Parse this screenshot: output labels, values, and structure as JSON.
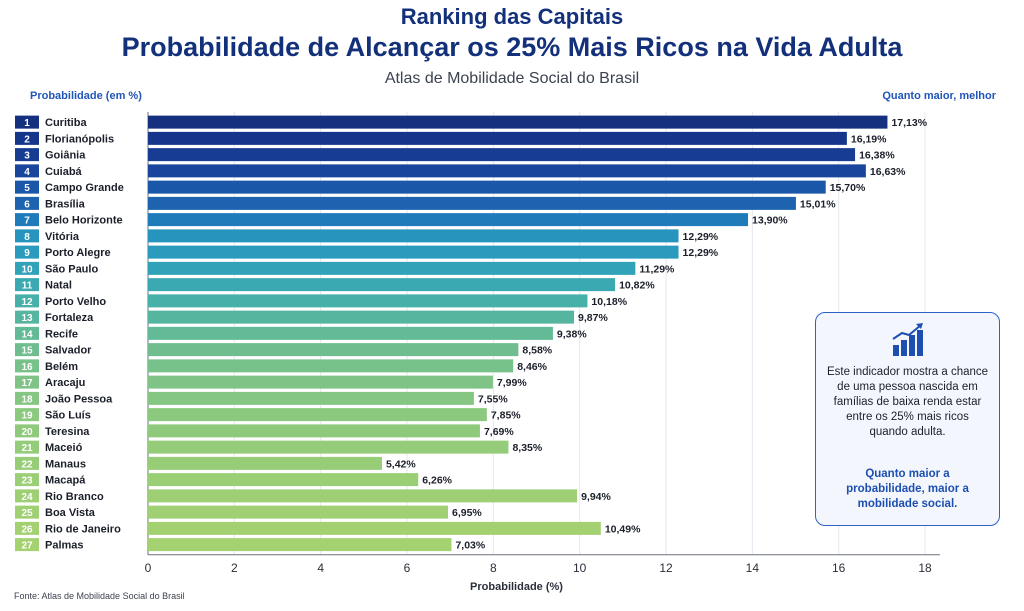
{
  "header": {
    "line1": "Ranking das Capitais",
    "line2": "Probabilidade de Alcançar os 25% Mais Ricos na Vida Adulta",
    "subtitle": "Atlas de Mobilidade Social do Brasil",
    "left_label": "Probabilidade (em %)",
    "right_label": "Quanto maior, melhor"
  },
  "info_box": {
    "icon": "bar-chart-growth-icon",
    "text": "Este indicador mostra a chance de uma pessoa nascida em famílias de baixa renda estar entre os 25% mais ricos quando adulta.",
    "highlight": "Quanto maior a probabilidade, maior a mobilidade social."
  },
  "footer": {
    "source": "Fonte: Atlas de Mobilidade Social do Brasil"
  },
  "chart_data": {
    "type": "bar",
    "orientation": "horizontal",
    "title": "Probabilidade de Alcançar os 25% Mais Ricos na Vida Adulta",
    "xlabel": "Probabilidade (%)",
    "ylabel": "Probabilidade (em %)",
    "xlim": [
      0,
      18
    ],
    "xticks": [
      0,
      2,
      4,
      6,
      8,
      10,
      12,
      14,
      16,
      18
    ],
    "grid": true,
    "ranks": [
      "1",
      "2",
      "3",
      "4",
      "5",
      "6",
      "7",
      "8",
      "9",
      "10",
      "11",
      "12",
      "13",
      "14",
      "15",
      "16",
      "17",
      "18",
      "19",
      "20",
      "21",
      "22",
      "23",
      "24",
      "25",
      "26",
      "27"
    ],
    "categories": [
      "Curitiba",
      "Florianópolis",
      "Goiânia",
      "Cuiabá",
      "Campo Grande",
      "Brasília",
      "Belo Horizonte",
      "Vitória",
      "Porto Alegre",
      "São Paulo",
      "Natal",
      "Porto Velho",
      "Fortaleza",
      "Recife",
      "Salvador",
      "Belém",
      "Aracaju",
      "João Pessoa",
      "São Luís",
      "Teresina",
      "Maceió",
      "Manaus",
      "Macapá",
      "Rio Branco",
      "Boa Vista",
      "Rio de Janeiro",
      "Palmas"
    ],
    "values": [
      17.13,
      16.19,
      16.38,
      16.63,
      15.7,
      15.01,
      13.9,
      12.29,
      12.29,
      11.29,
      10.82,
      10.18,
      9.87,
      9.38,
      8.58,
      8.46,
      7.99,
      7.55,
      7.85,
      7.69,
      8.35,
      5.42,
      6.26,
      9.94,
      6.95,
      10.49,
      7.03
    ],
    "value_labels": [
      "17,13%",
      "16,19%",
      "16,38%",
      "16,63%",
      "15,70%",
      "15,01%",
      "13,90%",
      "12,29%",
      "12,29%",
      "11,29%",
      "10,82%",
      "10,18%",
      "9,87%",
      "9,38%",
      "8,58%",
      "8,46%",
      "7,99%",
      "7,55%",
      "7,85%",
      "7,69%",
      "8,35%",
      "5,42%",
      "6,26%",
      "9,94%",
      "6,95%",
      "10,49%",
      "7,03%"
    ],
    "colors": [
      "#14307f",
      "#15368a",
      "#173d93",
      "#19459c",
      "#1b57a8",
      "#1d63b0",
      "#207bbb",
      "#2794bd",
      "#2a9bbd",
      "#30a3b9",
      "#3aa9b2",
      "#47b0a9",
      "#55b59f",
      "#62ba97",
      "#70be90",
      "#77c18a",
      "#7fc486",
      "#85c782",
      "#8bc97e",
      "#8fca7c",
      "#94cc79",
      "#97cd77",
      "#9bcf75",
      "#9ecf74",
      "#a0d073",
      "#a3d172",
      "#a5d271"
    ],
    "rank_box_colors": [
      "#14307f",
      "#15368a",
      "#173d93",
      "#19459c",
      "#1b57a8",
      "#1d63b0",
      "#207bbb",
      "#2794bd",
      "#2a9bbd",
      "#30a3b9",
      "#3aa9b2",
      "#47b0a9",
      "#55b59f",
      "#62ba97",
      "#70be90",
      "#77c18a",
      "#7fc486",
      "#85c782",
      "#8bc97e",
      "#8fca7c",
      "#94cc79",
      "#97cd77",
      "#9bcf75",
      "#9ecf74",
      "#a0d073",
      "#a3d172",
      "#a5d271"
    ]
  }
}
